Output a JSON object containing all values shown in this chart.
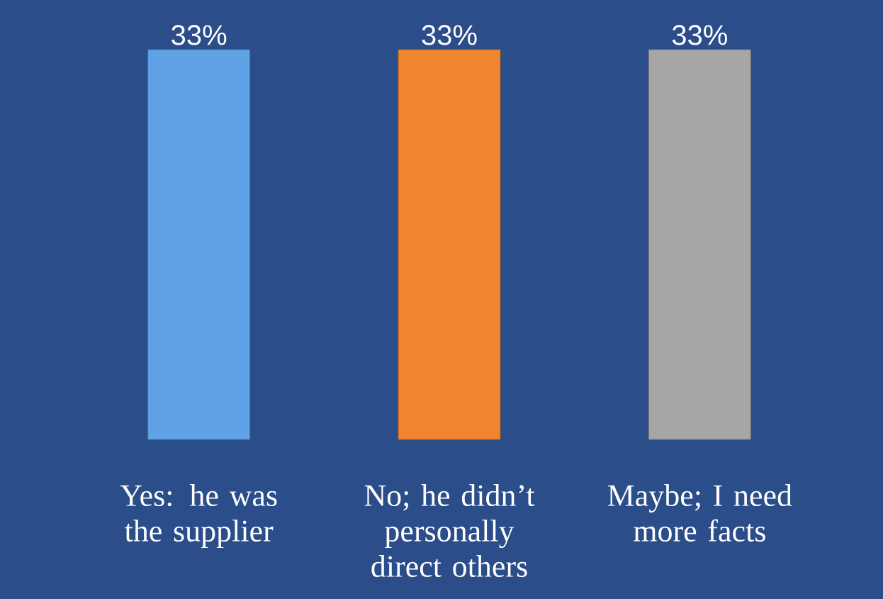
{
  "chart_data": {
    "type": "bar",
    "categories": [
      "Yes: he was the supplier",
      "No; he didn’t personally direct others",
      "Maybe; I need more facts"
    ],
    "values": [
      33,
      33,
      33
    ],
    "value_labels": [
      "33%",
      "33%",
      "33%"
    ],
    "colors": [
      "#5fa3e6",
      "#f08530",
      "#a6a6a6"
    ]
  }
}
